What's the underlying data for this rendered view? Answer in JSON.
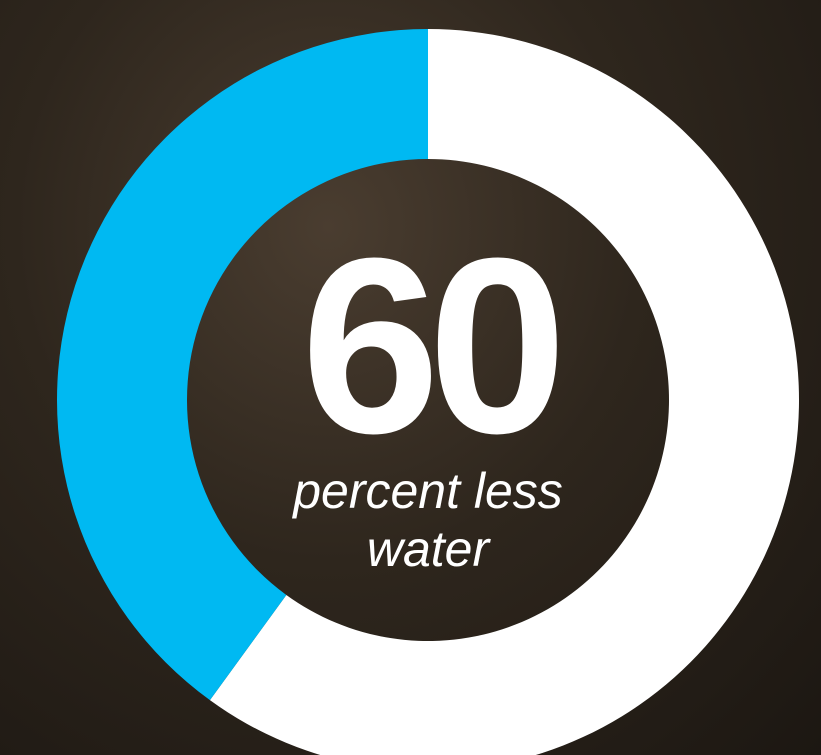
{
  "chart_data": {
    "type": "donut",
    "values": [
      60,
      40
    ],
    "colors": [
      "#ffffff",
      "#00b9f2"
    ],
    "center_label": "percent less water"
  }
}
